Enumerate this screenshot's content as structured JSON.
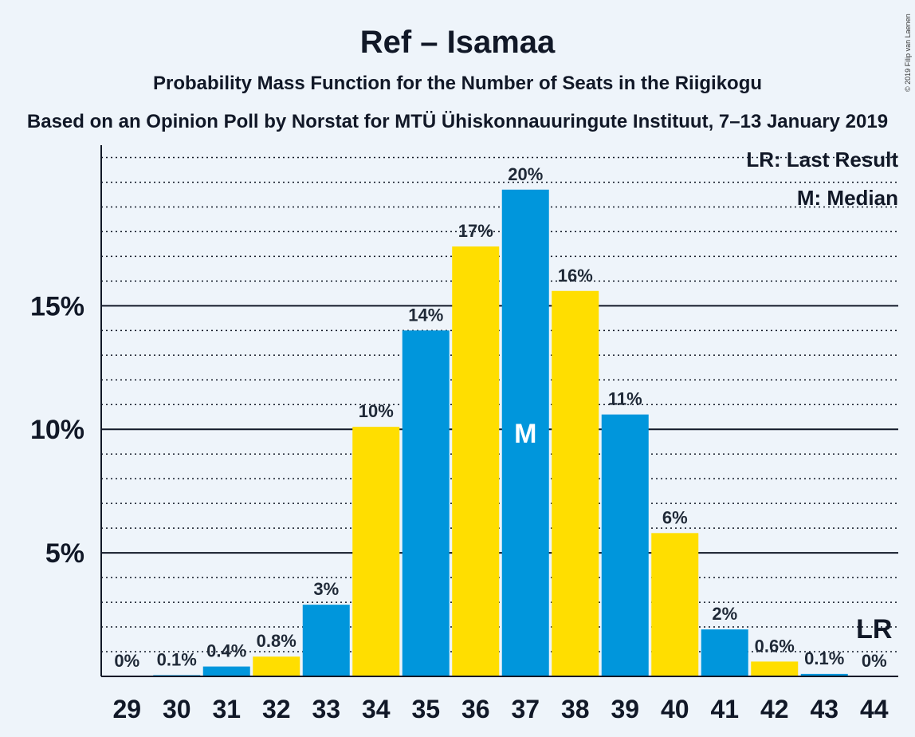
{
  "title": "Ref – Isamaa",
  "subtitle": "Probability Mass Function for the Number of Seats in the Riigikogu",
  "subtitle2": "Based on an Opinion Poll by Norstat for MTÜ Ühiskonnauuringute Instituut, 7–13 January 2019",
  "copyright": "© 2019 Filip van Laenen",
  "legend": {
    "last_result": "LR: Last Result",
    "median": "M: Median"
  },
  "colors": {
    "blue": "#0096dc",
    "yellow": "#ffde00",
    "background": "#eef4fa",
    "axis": "#111827"
  },
  "chart_data": {
    "type": "bar",
    "categories": [
      "29",
      "30",
      "31",
      "32",
      "33",
      "34",
      "35",
      "36",
      "37",
      "38",
      "39",
      "40",
      "41",
      "42",
      "43",
      "44"
    ],
    "values": [
      0,
      0.05,
      0.4,
      0.8,
      2.9,
      10.1,
      14.0,
      17.4,
      19.7,
      15.6,
      10.6,
      5.8,
      1.9,
      0.6,
      0.1,
      0
    ],
    "labels": [
      "0%",
      "0.1%",
      "0.4%",
      "0.8%",
      "3%",
      "10%",
      "14%",
      "17%",
      "20%",
      "16%",
      "11%",
      "6%",
      "2%",
      "0.6%",
      "0.1%",
      "0%"
    ],
    "bar_colors": [
      "blue",
      "blue",
      "blue",
      "yellow",
      "blue",
      "yellow",
      "blue",
      "yellow",
      "blue",
      "yellow",
      "blue",
      "yellow",
      "blue",
      "yellow",
      "blue",
      "yellow"
    ],
    "ylim": [
      0,
      21.5
    ],
    "yticks": [
      {
        "value": 5,
        "label": "5%"
      },
      {
        "value": 10,
        "label": "10%"
      },
      {
        "value": 15,
        "label": "15%"
      }
    ],
    "minor_grid_step": 1,
    "median": {
      "category": "37",
      "label": "M"
    },
    "last_result": {
      "category": "44",
      "label": "LR"
    },
    "xlabel": "",
    "ylabel": ""
  }
}
